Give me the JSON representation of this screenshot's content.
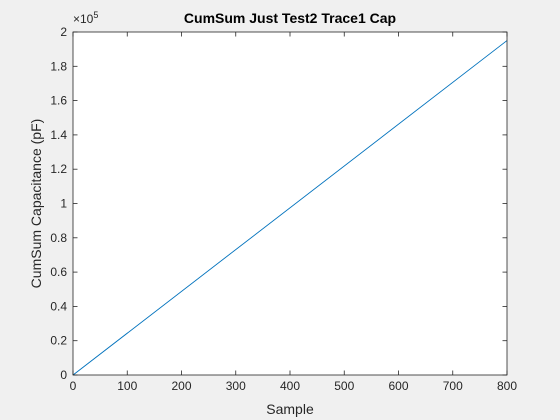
{
  "chart_data": {
    "type": "line",
    "title": "CumSum Just Test2 Trace1 Cap",
    "xlabel": "Sample",
    "ylabel": "CumSum Capacitance (pF)",
    "xlim": [
      0,
      800
    ],
    "ylim": [
      0,
      200000
    ],
    "x_ticks": [
      0,
      100,
      200,
      300,
      400,
      500,
      600,
      700,
      800
    ],
    "x_tick_labels": [
      "0",
      "100",
      "200",
      "300",
      "400",
      "500",
      "600",
      "700",
      "800"
    ],
    "y_ticks": [
      0,
      20000,
      40000,
      60000,
      80000,
      100000,
      120000,
      140000,
      160000,
      180000,
      200000
    ],
    "y_tick_labels": [
      "0",
      "0.2",
      "0.4",
      "0.6",
      "0.8",
      "1",
      "1.2",
      "1.4",
      "1.6",
      "1.8",
      "2"
    ],
    "y_exponent_base": "×10",
    "y_exponent_power": "5",
    "grid": false,
    "series": [
      {
        "color": "#0072bd",
        "x": [
          1,
          800
        ],
        "y": [
          240,
          195000
        ]
      }
    ]
  }
}
